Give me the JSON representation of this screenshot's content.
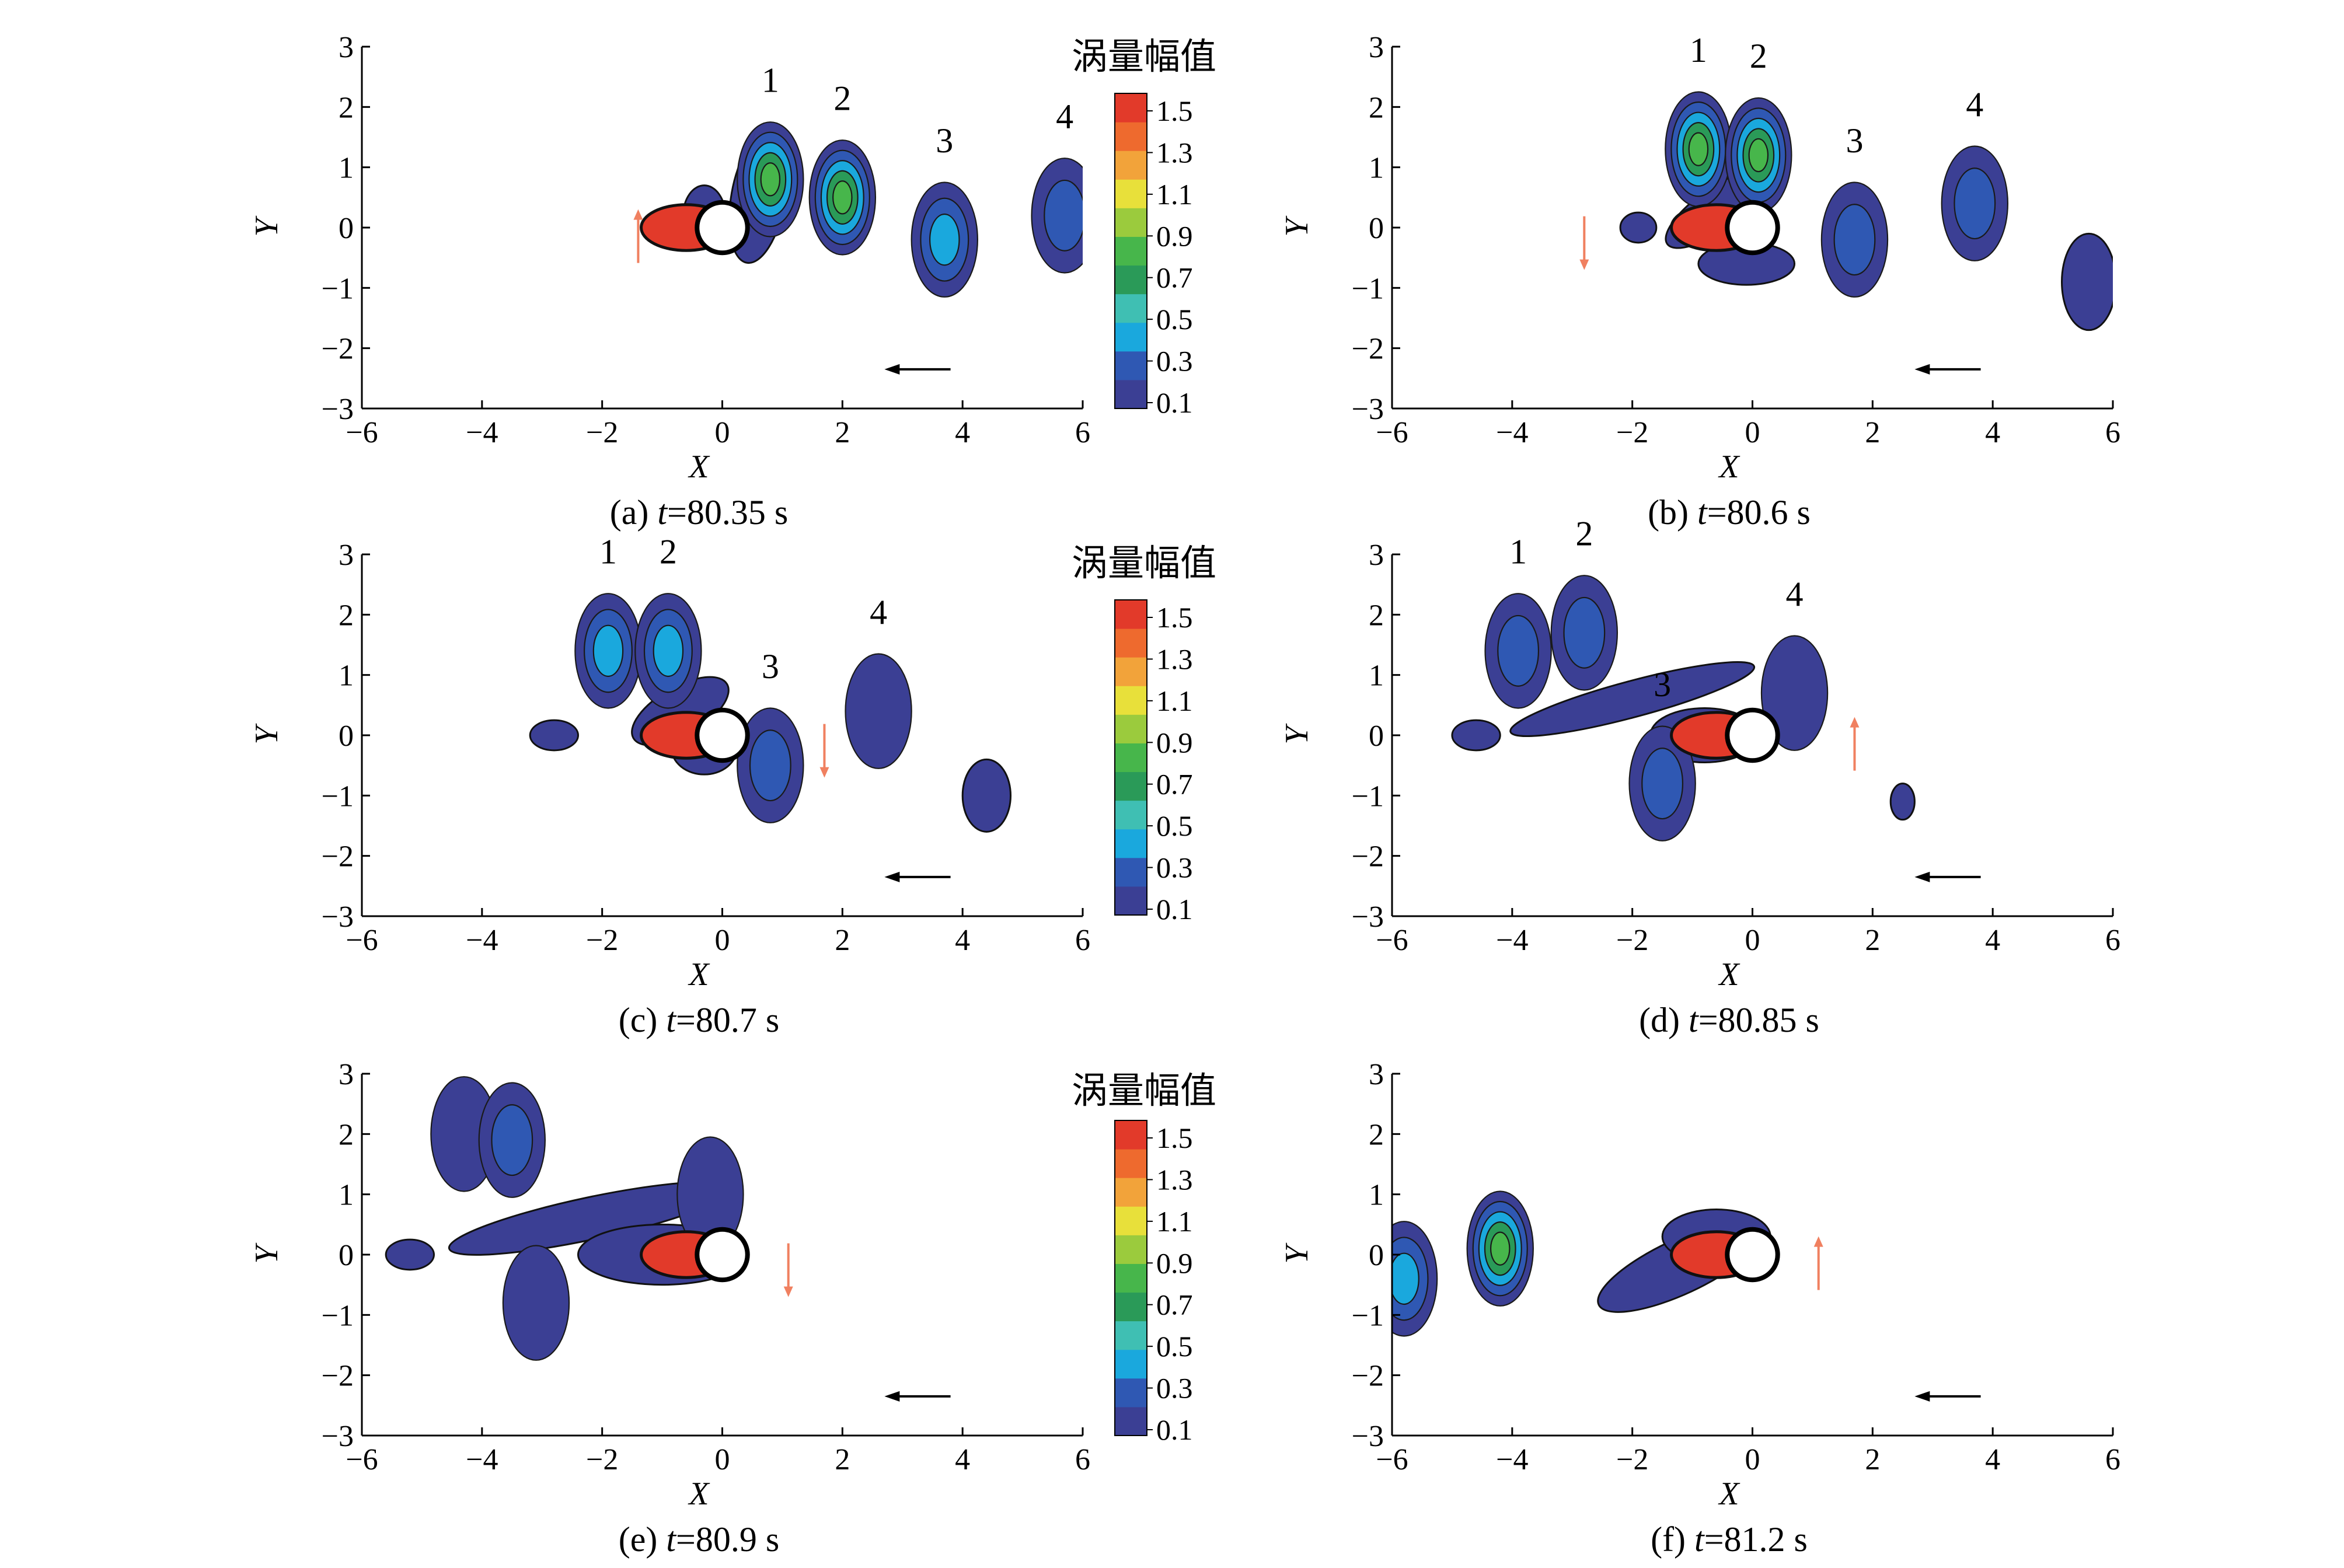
{
  "colors": {
    "colorbar_levels": [
      "#3b3f94",
      "#2f58b3",
      "#1aa8dd",
      "#3fbfb3",
      "#2a9a58",
      "#47b64b",
      "#9bcb3d",
      "#e8e03a",
      "#f2a33a",
      "#ee6a2e",
      "#e23a2a"
    ],
    "flow_arrow": "#000000",
    "body_motion_arrow": "#f08060"
  },
  "colorbar": {
    "title": "涡量幅值",
    "ticks": [
      "1.5",
      "1.3",
      "1.1",
      "0.9",
      "0.7",
      "0.5",
      "0.3",
      "0.1"
    ]
  },
  "chart_data": [
    {
      "type": "contour",
      "caption": {
        "prefix": "(a) ",
        "var": "t",
        "suffix": "=80.35 s"
      },
      "xlabel": "X",
      "ylabel": "Y",
      "xlim": [
        -6,
        6
      ],
      "ylim": [
        -3,
        3
      ],
      "xticks": [
        -6,
        -4,
        -2,
        0,
        2,
        4,
        6
      ],
      "yticks": [
        -3,
        -2,
        -1,
        0,
        1,
        2,
        3
      ],
      "cylinder": {
        "x": 0,
        "y": 0,
        "r": 0.42
      },
      "body_motion": "up",
      "vortices": [
        {
          "label": "1",
          "x": 0.8,
          "y": 0.8,
          "peak": 0.9
        },
        {
          "label": "2",
          "x": 2.0,
          "y": 0.5,
          "peak": 0.9
        },
        {
          "label": "3",
          "x": 3.7,
          "y": -0.2,
          "peak": 0.5
        },
        {
          "label": "4",
          "x": 5.7,
          "y": 0.2,
          "peak": 0.3
        }
      ]
    },
    {
      "type": "contour",
      "caption": {
        "prefix": "(b) ",
        "var": "t",
        "suffix": "=80.6 s"
      },
      "xlabel": "X",
      "ylabel": "Y",
      "xlim": [
        -6,
        6
      ],
      "ylim": [
        -3,
        3
      ],
      "xticks": [
        -6,
        -4,
        -2,
        0,
        2,
        4,
        6
      ],
      "yticks": [
        -3,
        -2,
        -1,
        0,
        1,
        2,
        3
      ],
      "cylinder": {
        "x": 0,
        "y": 0,
        "r": 0.42
      },
      "body_motion": "down",
      "vortices": [
        {
          "label": "1",
          "x": -0.9,
          "y": 1.3,
          "peak": 0.9
        },
        {
          "label": "2",
          "x": 0.1,
          "y": 1.2,
          "peak": 0.9
        },
        {
          "label": "3",
          "x": 1.7,
          "y": -0.2,
          "peak": 0.3
        },
        {
          "label": "4",
          "x": 3.7,
          "y": 0.4,
          "peak": 0.3
        }
      ]
    },
    {
      "type": "contour",
      "caption": {
        "prefix": "(c) ",
        "var": "t",
        "suffix": "=80.7 s"
      },
      "xlabel": "X",
      "ylabel": "Y",
      "xlim": [
        -6,
        6
      ],
      "ylim": [
        -3,
        3
      ],
      "xticks": [
        -6,
        -4,
        -2,
        0,
        2,
        4,
        6
      ],
      "yticks": [
        -3,
        -2,
        -1,
        0,
        1,
        2,
        3
      ],
      "cylinder": {
        "x": 0,
        "y": 0,
        "r": 0.42
      },
      "body_motion": "down",
      "vortices": [
        {
          "label": "1",
          "x": -1.9,
          "y": 1.4,
          "peak": 0.5
        },
        {
          "label": "2",
          "x": -0.9,
          "y": 1.4,
          "peak": 0.5
        },
        {
          "label": "3",
          "x": 0.8,
          "y": -0.5,
          "peak": 0.3
        },
        {
          "label": "4",
          "x": 2.6,
          "y": 0.4,
          "peak": 0.1
        }
      ]
    },
    {
      "type": "contour",
      "caption": {
        "prefix": "(d) ",
        "var": "t",
        "suffix": "=80.85 s"
      },
      "xlabel": "X",
      "ylabel": "Y",
      "xlim": [
        -6,
        6
      ],
      "ylim": [
        -3,
        3
      ],
      "xticks": [
        -6,
        -4,
        -2,
        0,
        2,
        4,
        6
      ],
      "yticks": [
        -3,
        -2,
        -1,
        0,
        1,
        2,
        3
      ],
      "cylinder": {
        "x": 0,
        "y": 0,
        "r": 0.42
      },
      "body_motion": "up",
      "vortices": [
        {
          "label": "1",
          "x": -3.9,
          "y": 1.4,
          "peak": 0.3
        },
        {
          "label": "2",
          "x": -2.8,
          "y": 1.7,
          "peak": 0.3
        },
        {
          "label": "3",
          "x": -1.5,
          "y": -0.8,
          "peak": 0.3
        },
        {
          "label": "4",
          "x": 0.7,
          "y": 0.7,
          "peak": 0.1
        }
      ]
    },
    {
      "type": "contour",
      "caption": {
        "prefix": "(e) ",
        "var": "t",
        "suffix": "=80.9 s"
      },
      "xlabel": "X",
      "ylabel": "Y",
      "xlim": [
        -6,
        6
      ],
      "ylim": [
        -3,
        3
      ],
      "xticks": [
        -6,
        -4,
        -2,
        0,
        2,
        4,
        6
      ],
      "yticks": [
        -3,
        -2,
        -1,
        0,
        1,
        2,
        3
      ],
      "cylinder": {
        "x": 0,
        "y": 0,
        "r": 0.42
      },
      "body_motion": "down",
      "vortices": [
        {
          "label": "",
          "x": -4.3,
          "y": 2.0,
          "peak": 0.1
        },
        {
          "label": "",
          "x": -3.5,
          "y": 1.9,
          "peak": 0.3
        },
        {
          "label": "",
          "x": -0.2,
          "y": 1.0,
          "peak": 0.1
        },
        {
          "label": "",
          "x": -3.1,
          "y": -0.8,
          "peak": 0.1
        }
      ]
    },
    {
      "type": "contour",
      "caption": {
        "prefix": "(f) ",
        "var": "t",
        "suffix": "=81.2 s"
      },
      "xlabel": "X",
      "ylabel": "Y",
      "xlim": [
        -6,
        6
      ],
      "ylim": [
        -3,
        3
      ],
      "xticks": [
        -6,
        -4,
        -2,
        0,
        2,
        4,
        6
      ],
      "yticks": [
        -3,
        -2,
        -1,
        0,
        1,
        2,
        3
      ],
      "cylinder": {
        "x": 0,
        "y": 0,
        "r": 0.42
      },
      "body_motion": "up",
      "vortices": [
        {
          "label": "",
          "x": -4.2,
          "y": 0.1,
          "peak": 0.9
        },
        {
          "label": "",
          "x": -5.8,
          "y": -0.4,
          "peak": 0.5
        }
      ]
    }
  ]
}
